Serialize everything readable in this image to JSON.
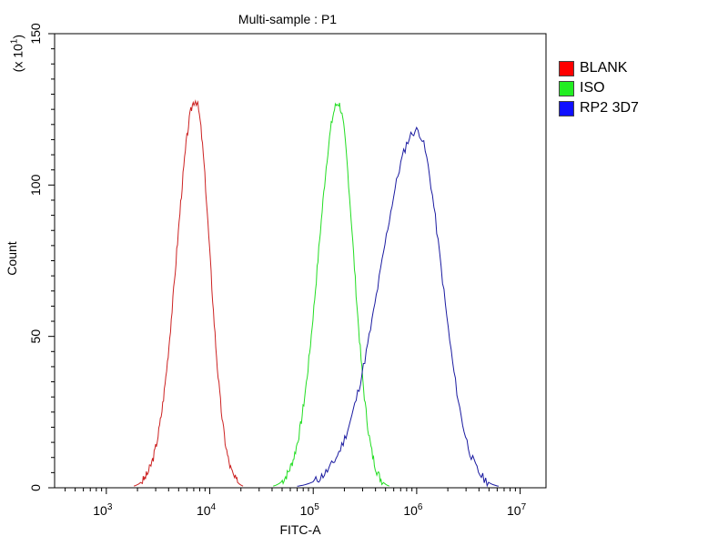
{
  "chart_data": {
    "type": "line",
    "title": "Multi-sample : P1",
    "xlabel": "FITC-A",
    "ylabel": "Count",
    "y_scale_note_prefix": "(x 10",
    "y_scale_note_exp": "1",
    "y_scale_note_suffix": ")",
    "x_scale": "log",
    "xlim_log10": [
      2.5,
      7.25
    ],
    "ylim": [
      0,
      150
    ],
    "x_ticks": [
      {
        "base": "10",
        "exp": "3",
        "log10": 3
      },
      {
        "base": "10",
        "exp": "4",
        "log10": 4
      },
      {
        "base": "10",
        "exp": "5",
        "log10": 5
      },
      {
        "base": "10",
        "exp": "6",
        "log10": 6
      },
      {
        "base": "10",
        "exp": "7",
        "log10": 7
      }
    ],
    "y_ticks": [
      0,
      50,
      100,
      150
    ],
    "legend_position": "right",
    "series": [
      {
        "name": "BLANK",
        "color": "#cc2222",
        "peak_log10": 3.86,
        "peak_count": 128
      },
      {
        "name": "ISO",
        "color": "#22dd22",
        "peak_log10": 5.24,
        "peak_count": 127
      },
      {
        "name": "RP2 3D7",
        "color": "#1a1aa0",
        "peak_log10": 6.0,
        "peak_count": 118
      }
    ]
  },
  "legend": {
    "items": [
      {
        "label": "BLANK",
        "color": "#ff0000"
      },
      {
        "label": "ISO",
        "color": "#22ee22"
      },
      {
        "label": "RP2 3D7",
        "color": "#1010ff"
      }
    ]
  }
}
